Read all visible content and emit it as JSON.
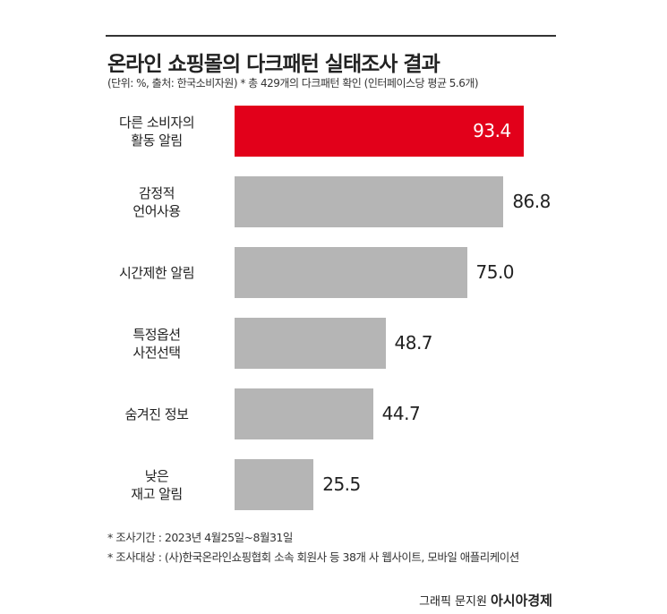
{
  "chart_data": {
    "type": "bar",
    "orientation": "horizontal",
    "title": "온라인 쇼핑몰의 다크패턴 실태조사 결과",
    "subtitle": "(단위: %, 출처: 한국소비자원)  * 총 429개의 다크패턴 확인 (인터페이스당 평균 5.6개)",
    "categories": [
      "다른 소비자의\n활동 알림",
      "감정적\n언어사용",
      "시간제한 알림",
      "특정옵션\n사전선택",
      "숨겨진 정보",
      "낮은\n재고 알림"
    ],
    "values": [
      93.4,
      86.8,
      75.0,
      48.7,
      44.7,
      25.5
    ],
    "value_labels": [
      "93.4",
      "86.8",
      "75.0",
      "48.7",
      "44.7",
      "25.5"
    ],
    "color": "#b5b5b5",
    "highlight_color": "#e2001a",
    "highlight": [
      0
    ],
    "notes": [
      "* 조사기간 : 2023년 4월25일~8월31일",
      "* 조사대상 : (사)한국온라인쇼핑협회 소속 회원사 등 38개 사 웹사이트, 모바일 애플리케이션"
    ],
    "credit": "그래픽 문지원",
    "source": "아시아경제"
  }
}
